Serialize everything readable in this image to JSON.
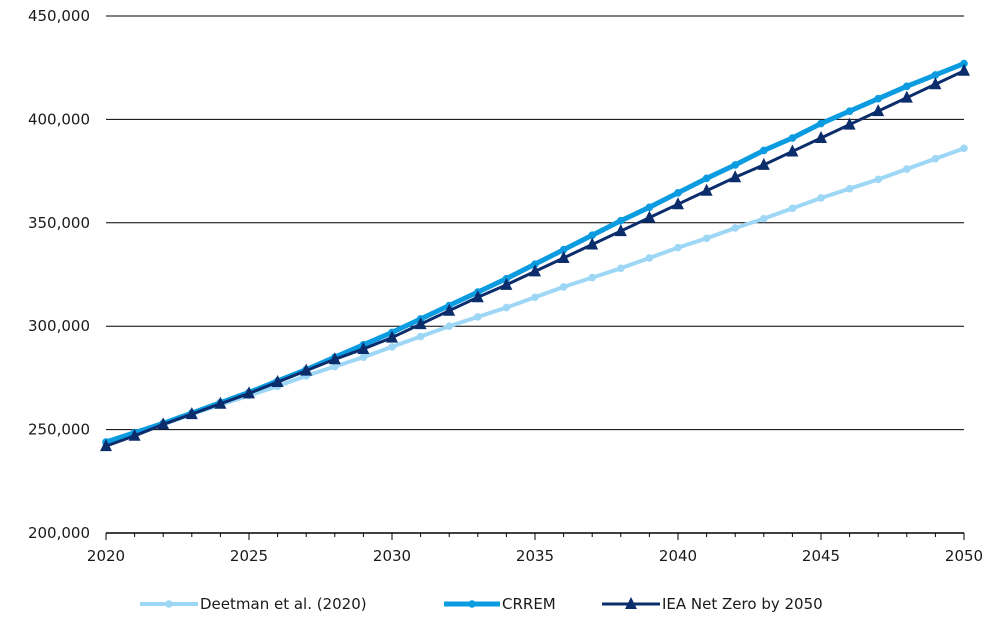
{
  "chart_data": {
    "type": "line",
    "title": "",
    "xlabel": "",
    "ylabel": "",
    "xlim": [
      2020,
      2050
    ],
    "ylim": [
      200000,
      450000
    ],
    "x_ticks": [
      2020,
      2025,
      2030,
      2035,
      2040,
      2045,
      2050
    ],
    "y_ticks": [
      200000,
      250000,
      300000,
      350000,
      400000,
      450000
    ],
    "x_tick_labels": [
      "2020",
      "2025",
      "2030",
      "2035",
      "2040",
      "2045",
      "2050"
    ],
    "y_tick_labels": [
      "200,000",
      "250,000",
      "300,000",
      "350,000",
      "400,000",
      "450,000"
    ],
    "grid": "horizontal",
    "legend_position": "bottom",
    "x": [
      2020,
      2021,
      2022,
      2023,
      2024,
      2025,
      2026,
      2027,
      2028,
      2029,
      2030,
      2031,
      2032,
      2033,
      2034,
      2035,
      2036,
      2037,
      2038,
      2039,
      2040,
      2041,
      2042,
      2043,
      2044,
      2045,
      2046,
      2047,
      2048,
      2049,
      2050
    ],
    "series": [
      {
        "name": "Deetman et al. (2020)",
        "color": "#9DD7F5",
        "marker": "circle",
        "values": [
          243000,
          248000,
          252500,
          257500,
          262000,
          266500,
          271000,
          276000,
          280500,
          285000,
          290000,
          295000,
          300000,
          304500,
          309000,
          314000,
          319000,
          323500,
          328000,
          333000,
          338000,
          342500,
          347500,
          352000,
          357000,
          362000,
          366500,
          371000,
          376000,
          381000,
          386000
        ]
      },
      {
        "name": "CRREM",
        "color": "#0A9BE0",
        "marker": "circle",
        "values": [
          244000,
          248500,
          253000,
          258000,
          263000,
          268000,
          273500,
          279000,
          285000,
          291000,
          297000,
          303500,
          310000,
          316500,
          323000,
          330000,
          337000,
          344000,
          351000,
          357500,
          364500,
          371500,
          378000,
          385000,
          391000,
          398000,
          404000,
          410000,
          416000,
          421500,
          427000
        ]
      },
      {
        "name": "IEA Net Zero by 2050",
        "color": "#0B2D6B",
        "marker": "triangle",
        "values": [
          242000,
          247000,
          252500,
          257500,
          262500,
          267500,
          273000,
          278500,
          284000,
          289000,
          294500,
          301000,
          307500,
          314000,
          320000,
          326500,
          333000,
          339500,
          346000,
          352500,
          359000,
          365500,
          372000,
          378000,
          384500,
          391000,
          397500,
          404000,
          410500,
          417000,
          423500
        ]
      }
    ]
  }
}
